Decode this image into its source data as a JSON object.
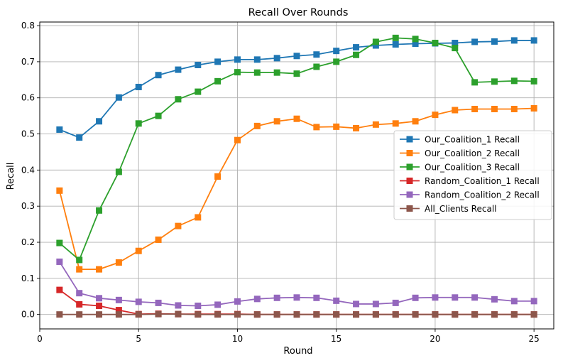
{
  "chart_data": {
    "type": "line",
    "title": "Recall Over Rounds",
    "xlabel": "Round",
    "ylabel": "Recall",
    "xlim": [
      0,
      26
    ],
    "ylim": [
      -0.04,
      0.81
    ],
    "xticks": [
      0,
      5,
      10,
      15,
      20,
      25
    ],
    "yticks": [
      0.0,
      0.1,
      0.2,
      0.3,
      0.4,
      0.5,
      0.6,
      0.7,
      0.8
    ],
    "ytick_labels": [
      "0.0",
      "0.1",
      "0.2",
      "0.3",
      "0.4",
      "0.5",
      "0.6",
      "0.7",
      "0.8"
    ],
    "grid": true,
    "legend_position": "center-right",
    "x": [
      1,
      2,
      3,
      4,
      5,
      6,
      7,
      8,
      9,
      10,
      11,
      12,
      13,
      14,
      15,
      16,
      17,
      18,
      19,
      20,
      21,
      22,
      23,
      24,
      25
    ],
    "series": [
      {
        "name": "Our_Coalition_1 Recall",
        "color": "#1f77b4",
        "values": [
          0.512,
          0.49,
          0.535,
          0.601,
          0.63,
          0.663,
          0.678,
          0.691,
          0.7,
          0.706,
          0.706,
          0.71,
          0.716,
          0.72,
          0.73,
          0.74,
          0.745,
          0.748,
          0.75,
          0.751,
          0.752,
          0.755,
          0.756,
          0.759,
          0.759
        ]
      },
      {
        "name": "Our_Coalition_2 Recall",
        "color": "#ff7f0e",
        "values": [
          0.343,
          0.125,
          0.125,
          0.144,
          0.176,
          0.207,
          0.245,
          0.269,
          0.382,
          0.483,
          0.522,
          0.535,
          0.542,
          0.519,
          0.52,
          0.516,
          0.526,
          0.529,
          0.535,
          0.553,
          0.566,
          0.569,
          0.569,
          0.569,
          0.571
        ]
      },
      {
        "name": "Our_Coalition_3 Recall",
        "color": "#2ca02c",
        "values": [
          0.198,
          0.151,
          0.288,
          0.395,
          0.529,
          0.55,
          0.596,
          0.617,
          0.646,
          0.671,
          0.67,
          0.67,
          0.667,
          0.686,
          0.7,
          0.719,
          0.755,
          0.766,
          0.763,
          0.752,
          0.738,
          0.643,
          0.645,
          0.647,
          0.646
        ]
      },
      {
        "name": "Random_Coalition_1 Recall",
        "color": "#d62728",
        "values": [
          0.068,
          0.028,
          0.024,
          0.012,
          0.001,
          0.002,
          0.001,
          0.001,
          0.001,
          0.001,
          0.0,
          0.0,
          0.0,
          0.0,
          0.0,
          0.0,
          0.0,
          0.0,
          0.0,
          0.0,
          0.0,
          0.0,
          0.0,
          0.0,
          0.0
        ]
      },
      {
        "name": "Random_Coalition_2 Recall",
        "color": "#9467bd",
        "values": [
          0.146,
          0.059,
          0.045,
          0.04,
          0.035,
          0.032,
          0.025,
          0.024,
          0.027,
          0.036,
          0.043,
          0.046,
          0.047,
          0.046,
          0.038,
          0.029,
          0.029,
          0.032,
          0.046,
          0.047,
          0.047,
          0.047,
          0.042,
          0.037,
          0.037
        ]
      },
      {
        "name": "All_Clients Recall",
        "color": "#8c564b",
        "values": [
          0.0,
          0.0,
          0.0,
          0.0,
          0.0,
          0.001,
          0.001,
          0.0,
          0.0,
          0.0,
          0.0,
          0.0,
          0.0,
          0.0,
          0.0,
          0.0,
          0.0,
          0.0,
          0.0,
          0.0,
          0.0,
          0.0,
          0.0,
          0.0,
          0.0
        ]
      }
    ]
  }
}
